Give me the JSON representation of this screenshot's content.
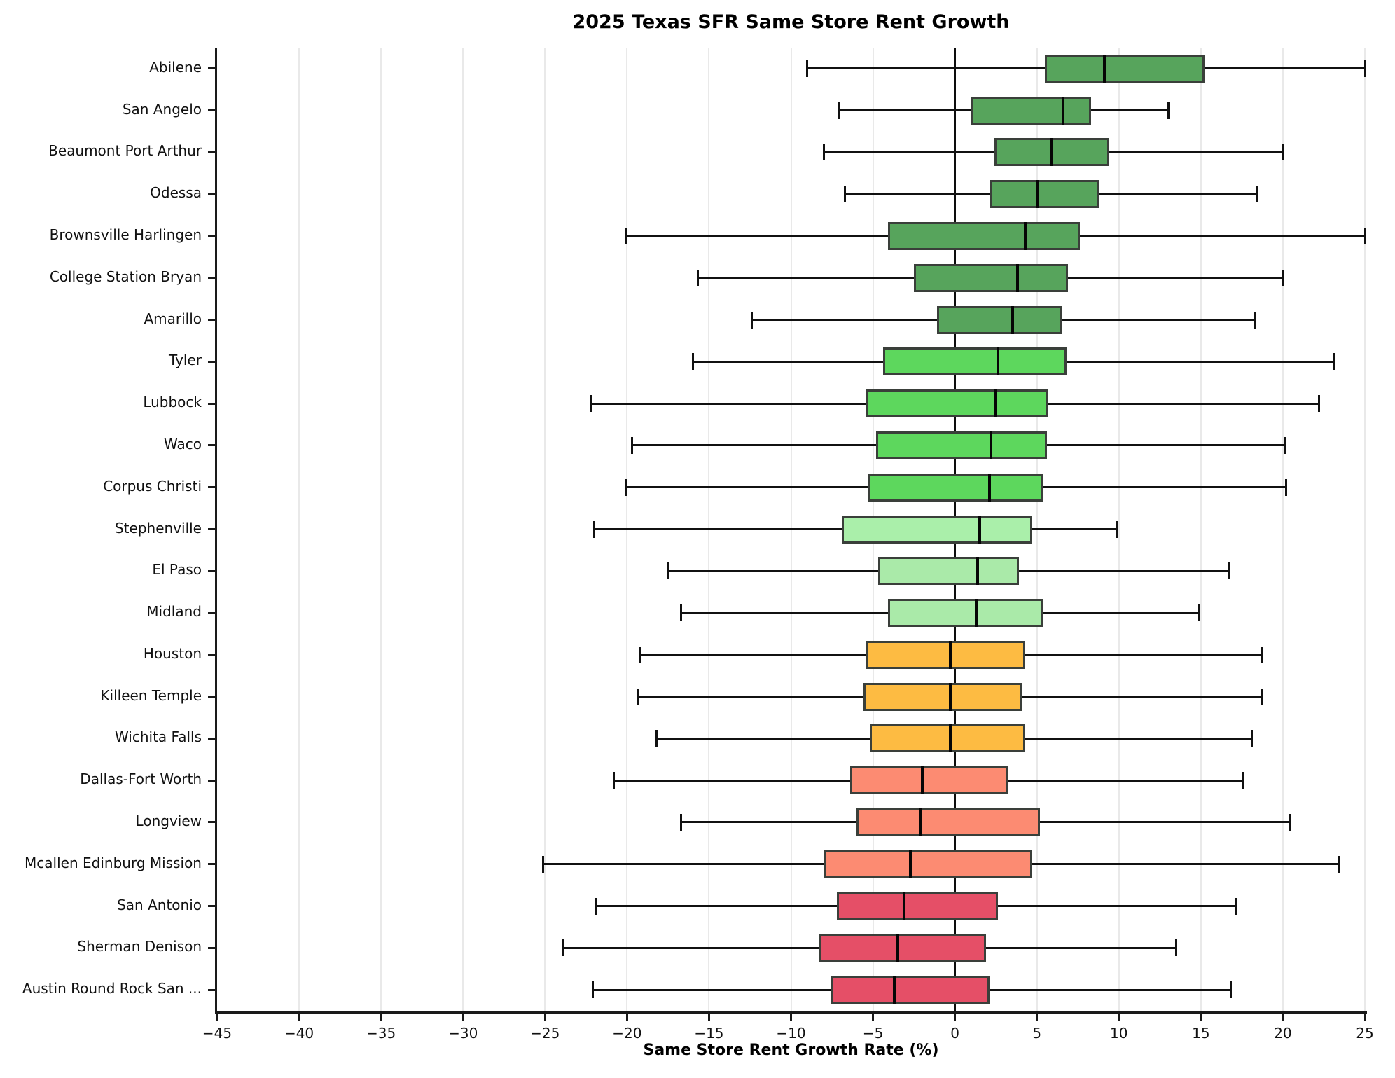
{
  "chart_data": {
    "type": "boxplot",
    "orientation": "horizontal",
    "title": "2025 Texas SFR Same Store Rent Growth",
    "xlabel": "Same Store Rent Growth Rate (%)",
    "ylabel": "",
    "xlim": [
      -45,
      25
    ],
    "xticks": [
      -45,
      -40,
      -35,
      -30,
      -25,
      -20,
      -15,
      -10,
      -5,
      0,
      5,
      10,
      15,
      20,
      25
    ],
    "grid": "vertical light-gray gridlines at every 5 units",
    "zero_line_color": "#0d0d0d",
    "legend": "none",
    "categories": [
      "Abilene",
      "San Angelo",
      "Beaumont Port Arthur",
      "Odessa",
      "Brownsville Harlingen",
      "College Station Bryan",
      "Amarillo",
      "Tyler",
      "Lubbock",
      "Waco",
      "Corpus Christi",
      "Stephenville",
      "El Paso",
      "Midland",
      "Houston",
      "Killeen Temple",
      "Wichita Falls",
      "Dallas-Fort Worth",
      "Longview",
      "Mcallen Edinburg Mission",
      "San Antonio",
      "Sherman Denison",
      "Austin Round Rock San ..."
    ],
    "series": [
      {
        "city": "Abilene",
        "whisker_low": -9.0,
        "q1": 5.5,
        "median": 9.1,
        "q3": 15.2,
        "whisker_high": 25.0,
        "color": "#57a45c"
      },
      {
        "city": "San Angelo",
        "whisker_low": -7.1,
        "q1": 1.0,
        "median": 6.6,
        "q3": 8.3,
        "whisker_high": 13.0,
        "color": "#57a45c"
      },
      {
        "city": "Beaumont Port Arthur",
        "whisker_low": -8.0,
        "q1": 2.4,
        "median": 5.9,
        "q3": 9.4,
        "whisker_high": 20.0,
        "color": "#57a45c"
      },
      {
        "city": "Odessa",
        "whisker_low": -6.7,
        "q1": 2.1,
        "median": 5.0,
        "q3": 8.8,
        "whisker_high": 18.4,
        "color": "#57a45c"
      },
      {
        "city": "Brownsville Harlingen",
        "whisker_low": -20.1,
        "q1": -4.1,
        "median": 4.3,
        "q3": 7.6,
        "whisker_high": 25.0,
        "color": "#57a45c"
      },
      {
        "city": "College Station Bryan",
        "whisker_low": -15.7,
        "q1": -2.5,
        "median": 3.8,
        "q3": 6.9,
        "whisker_high": 20.0,
        "color": "#57a45c"
      },
      {
        "city": "Amarillo",
        "whisker_low": -12.4,
        "q1": -1.1,
        "median": 3.5,
        "q3": 6.5,
        "whisker_high": 18.3,
        "color": "#57a45c"
      },
      {
        "city": "Tyler",
        "whisker_low": -16.0,
        "q1": -4.4,
        "median": 2.6,
        "q3": 6.8,
        "whisker_high": 23.1,
        "color": "#5dd75d"
      },
      {
        "city": "Lubbock",
        "whisker_low": -22.2,
        "q1": -5.4,
        "median": 2.5,
        "q3": 5.7,
        "whisker_high": 22.2,
        "color": "#5dd75d"
      },
      {
        "city": "Waco",
        "whisker_low": -19.7,
        "q1": -4.8,
        "median": 2.2,
        "q3": 5.6,
        "whisker_high": 20.1,
        "color": "#5dd75d"
      },
      {
        "city": "Corpus Christi",
        "whisker_low": -20.1,
        "q1": -5.3,
        "median": 2.1,
        "q3": 5.4,
        "whisker_high": 20.2,
        "color": "#5dd75d"
      },
      {
        "city": "Stephenville",
        "whisker_low": -22.0,
        "q1": -6.9,
        "median": 1.5,
        "q3": 4.7,
        "whisker_high": 9.9,
        "color": "#aaefaa"
      },
      {
        "city": "El Paso",
        "whisker_low": -17.5,
        "q1": -4.7,
        "median": 1.4,
        "q3": 3.9,
        "whisker_high": 16.7,
        "color": "#aaeaa9"
      },
      {
        "city": "Midland",
        "whisker_low": -16.7,
        "q1": -4.1,
        "median": 1.3,
        "q3": 5.4,
        "whisker_high": 14.9,
        "color": "#aaeaa9"
      },
      {
        "city": "Houston",
        "whisker_low": -19.2,
        "q1": -5.4,
        "median": -0.3,
        "q3": 4.3,
        "whisker_high": 18.7,
        "color": "#fdbb42"
      },
      {
        "city": "Killeen Temple",
        "whisker_low": -19.3,
        "q1": -5.6,
        "median": -0.3,
        "q3": 4.1,
        "whisker_high": 18.7,
        "color": "#fdbb42"
      },
      {
        "city": "Wichita Falls",
        "whisker_low": -18.2,
        "q1": -5.2,
        "median": -0.3,
        "q3": 4.3,
        "whisker_high": 18.1,
        "color": "#fdbb42"
      },
      {
        "city": "Dallas-Fort Worth",
        "whisker_low": -20.8,
        "q1": -6.4,
        "median": -2.0,
        "q3": 3.2,
        "whisker_high": 17.6,
        "color": "#fc8b72"
      },
      {
        "city": "Longview",
        "whisker_low": -16.7,
        "q1": -6.0,
        "median": -2.1,
        "q3": 5.2,
        "whisker_high": 20.4,
        "color": "#fc8b72"
      },
      {
        "city": "Mcallen Edinburg Mission",
        "whisker_low": -25.1,
        "q1": -8.0,
        "median": -2.7,
        "q3": 4.7,
        "whisker_high": 23.4,
        "color": "#fc8b72"
      },
      {
        "city": "San Antonio",
        "whisker_low": -21.9,
        "q1": -7.2,
        "median": -3.1,
        "q3": 2.6,
        "whisker_high": 17.1,
        "color": "#e54f67"
      },
      {
        "city": "Sherman Denison",
        "whisker_low": -23.9,
        "q1": -8.3,
        "median": -3.5,
        "q3": 1.9,
        "whisker_high": 13.5,
        "color": "#e54f67"
      },
      {
        "city": "Austin Round Rock San ...",
        "whisker_low": -22.1,
        "q1": -7.6,
        "median": -3.7,
        "q3": 2.1,
        "whisker_high": 16.8,
        "color": "#e54f67"
      }
    ],
    "style": {
      "box_border_color": "#3a3f3a",
      "median_color": "#060606",
      "whisker_color": "#111111",
      "grid_color": "#e9e9e9",
      "spine_color": "#1a1a1a",
      "background": "#ffffff"
    }
  }
}
